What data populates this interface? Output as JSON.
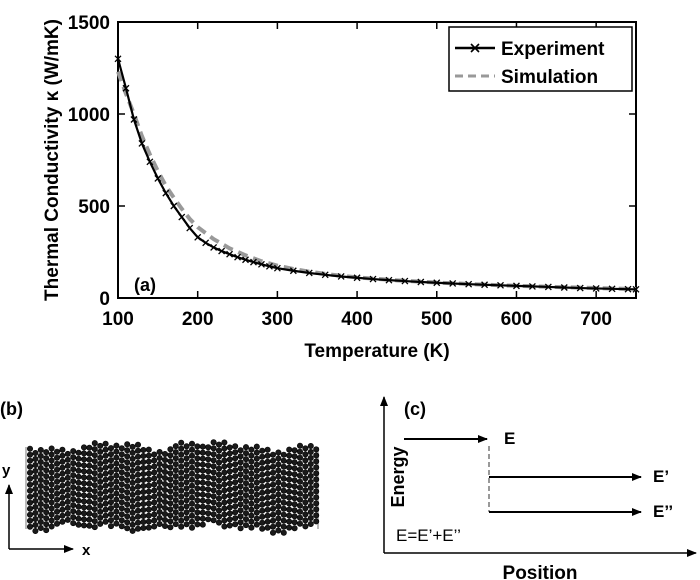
{
  "chart_data": {
    "type": "line",
    "panel_label": "(a)",
    "xlabel": "Temperature (K)",
    "ylabel": "Thermal Conductivity κ (W/mK)",
    "xlim": [
      100,
      750
    ],
    "ylim": [
      0,
      1500
    ],
    "x_ticks": [
      100,
      200,
      300,
      400,
      500,
      600,
      700
    ],
    "y_ticks": [
      0,
      500,
      1000,
      1500
    ],
    "grid": false,
    "legend_position": "top-right",
    "series": [
      {
        "name": "Experiment",
        "style": "solid-with-x-markers",
        "color": "#000000",
        "x": [
          100,
          110,
          120,
          130,
          140,
          150,
          160,
          170,
          180,
          190,
          200,
          210,
          220,
          230,
          240,
          250,
          260,
          270,
          280,
          290,
          300,
          320,
          340,
          360,
          380,
          400,
          420,
          440,
          460,
          480,
          500,
          520,
          540,
          560,
          580,
          600,
          620,
          640,
          660,
          680,
          700,
          720,
          740,
          750
        ],
        "y": [
          1300,
          1140,
          970,
          840,
          740,
          650,
          570,
          500,
          440,
          380,
          330,
          300,
          275,
          255,
          238,
          222,
          208,
          195,
          183,
          172,
          162,
          148,
          136,
          126,
          117,
          110,
          103,
          97,
          92,
          87,
          83,
          79,
          75,
          72,
          69,
          66,
          63,
          60,
          57,
          54,
          52,
          50,
          48,
          47
        ]
      },
      {
        "name": "Simulation",
        "style": "dashed",
        "color": "#999999",
        "x": [
          100,
          110,
          120,
          130,
          140,
          150,
          160,
          170,
          180,
          190,
          200,
          220,
          240,
          260,
          280,
          300,
          320,
          340,
          360,
          380,
          400,
          450,
          500,
          550,
          600,
          650,
          700,
          750
        ],
        "y": [
          1230,
          1110,
          1000,
          880,
          780,
          690,
          610,
          545,
          485,
          430,
          385,
          320,
          270,
          232,
          200,
          176,
          158,
          143,
          131,
          121,
          112,
          96,
          84,
          74,
          66,
          60,
          54,
          49
        ]
      }
    ]
  },
  "panel_b": {
    "label": "(b)",
    "y_axis_label": "y",
    "x_axis_label": "x"
  },
  "panel_c": {
    "label": "(c)",
    "y_axis_label": "Energy",
    "x_axis_label": "Position",
    "incident_label": "E",
    "upper_label": "E’",
    "lower_label": "E’’",
    "equation": "E=E’+E’’"
  }
}
